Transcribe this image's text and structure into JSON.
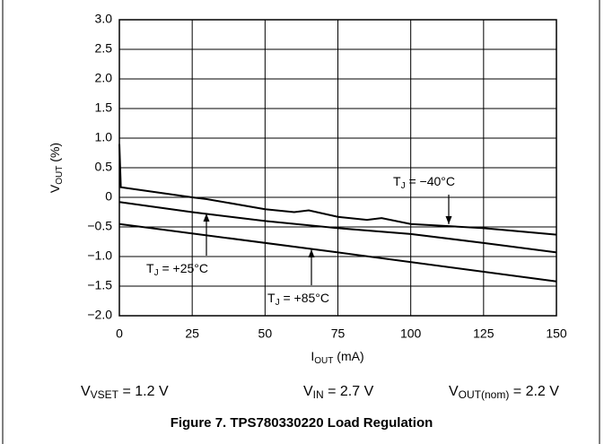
{
  "chart_data": {
    "type": "line",
    "ylabel": [
      "V",
      "OUT",
      " (%)"
    ],
    "xlabel": [
      "I",
      "OUT",
      " (mA)"
    ],
    "conditions": [
      [
        "V",
        "VSET",
        " = 1.2 V"
      ],
      [
        "V",
        "IN",
        " = 2.7 V"
      ],
      [
        "V",
        "OUT(nom)",
        " = 2.2 V"
      ]
    ],
    "caption": "Figure 7. TPS780330220 Load Regulation",
    "xlim": [
      0,
      150
    ],
    "xticks": [
      0,
      25,
      50,
      75,
      100,
      125,
      150
    ],
    "ylim": [
      -2.0,
      3.0
    ],
    "yticks": [
      {
        "value": -2.0,
        "label": "−2.0"
      },
      {
        "value": -1.5,
        "label": "−1.5"
      },
      {
        "value": -1.0,
        "label": "−1.0"
      },
      {
        "value": -0.5,
        "label": "−0.5"
      },
      0,
      {
        "value": 0.5,
        "label": "0.5"
      },
      {
        "value": 1.0,
        "label": "1.0"
      },
      {
        "value": 1.5,
        "label": "1.5"
      },
      {
        "value": 2.0,
        "label": "2.0"
      },
      {
        "value": 2.5,
        "label": "2.5"
      },
      {
        "value": 3.0,
        "label": "3.0"
      }
    ],
    "grid": true,
    "color": "#000000",
    "series": [
      {
        "name": [
          "T",
          "J",
          " = −40°C"
        ],
        "x": [
          0,
          0.5,
          25,
          30,
          50,
          60,
          65,
          75,
          85,
          90,
          100,
          125,
          150
        ],
        "values": [
          0.9,
          0.17,
          0.0,
          -0.03,
          -0.2,
          -0.25,
          -0.22,
          -0.33,
          -0.38,
          -0.35,
          -0.45,
          -0.52,
          -0.63
        ]
      },
      {
        "name": [
          "T",
          "J",
          " = +25°C"
        ],
        "x": [
          0,
          25,
          50,
          75,
          100,
          125,
          150
        ],
        "values": [
          -0.08,
          -0.25,
          -0.4,
          -0.52,
          -0.62,
          -0.77,
          -0.93
        ]
      },
      {
        "name": [
          "T",
          "J",
          " = +85°C"
        ],
        "x": [
          0,
          75,
          150
        ],
        "values": [
          -0.45,
          -0.93,
          -1.42
        ]
      }
    ]
  }
}
